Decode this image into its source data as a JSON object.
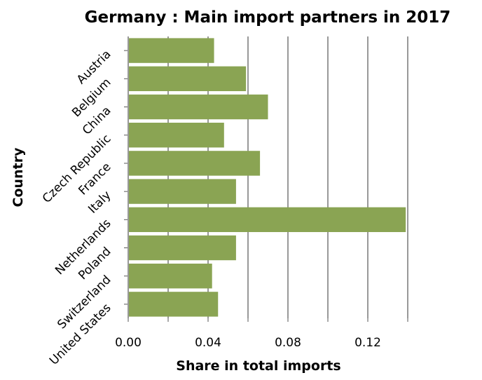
{
  "chart_data": {
    "type": "bar",
    "orientation": "horizontal",
    "title": "Germany : Main import partners in 2017",
    "xlabel": "Share in total imports",
    "ylabel": "Country",
    "categories": [
      "Austria",
      "Belgium",
      "China",
      "Czech Republic",
      "France",
      "Italy",
      "Netherlands",
      "Poland",
      "Switzerland",
      "United States"
    ],
    "values": [
      0.043,
      0.059,
      0.07,
      0.048,
      0.066,
      0.054,
      0.139,
      0.054,
      0.042,
      0.045
    ],
    "xlim": [
      0,
      0.14
    ],
    "xticks": [
      0.0,
      0.04,
      0.08,
      0.12
    ],
    "xtick_labels": [
      "0.00",
      "0.04",
      "0.08",
      "0.12"
    ],
    "bar_color": "#8aa453",
    "grid": "vertical",
    "legend": "none"
  }
}
